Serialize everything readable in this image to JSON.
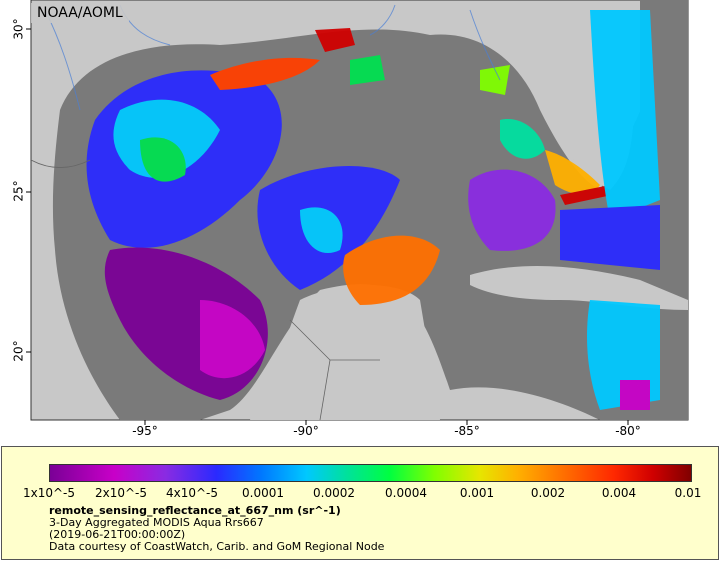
{
  "attribution": "NOAA/AOML",
  "latitude_labels": [
    "30°",
    "25°",
    "20°"
  ],
  "longitude_labels": [
    "-95°",
    "-90°",
    "-85°",
    "-80°"
  ],
  "colorbar_ticks": [
    "1x10^-5",
    "2x10^-5",
    "4x10^-5",
    "0.0001",
    "0.0002",
    "0.0004",
    "0.001",
    "0.002",
    "0.004",
    "0.01"
  ],
  "legend": {
    "variable": "remote_sensing_reflectance_at_667_nm (sr^-1)",
    "line1": "3-Day Aggregated MODIS Aqua Rrs667",
    "line2": "(2019-06-21T00:00:00Z)",
    "line3": "Data courtesy of CoastWatch, Carib. and GoM Regional Node"
  },
  "colors": {
    "land": "#c8c8c8",
    "water_nodata": "#7a7a7a",
    "legend_background": "#ffffcc"
  }
}
